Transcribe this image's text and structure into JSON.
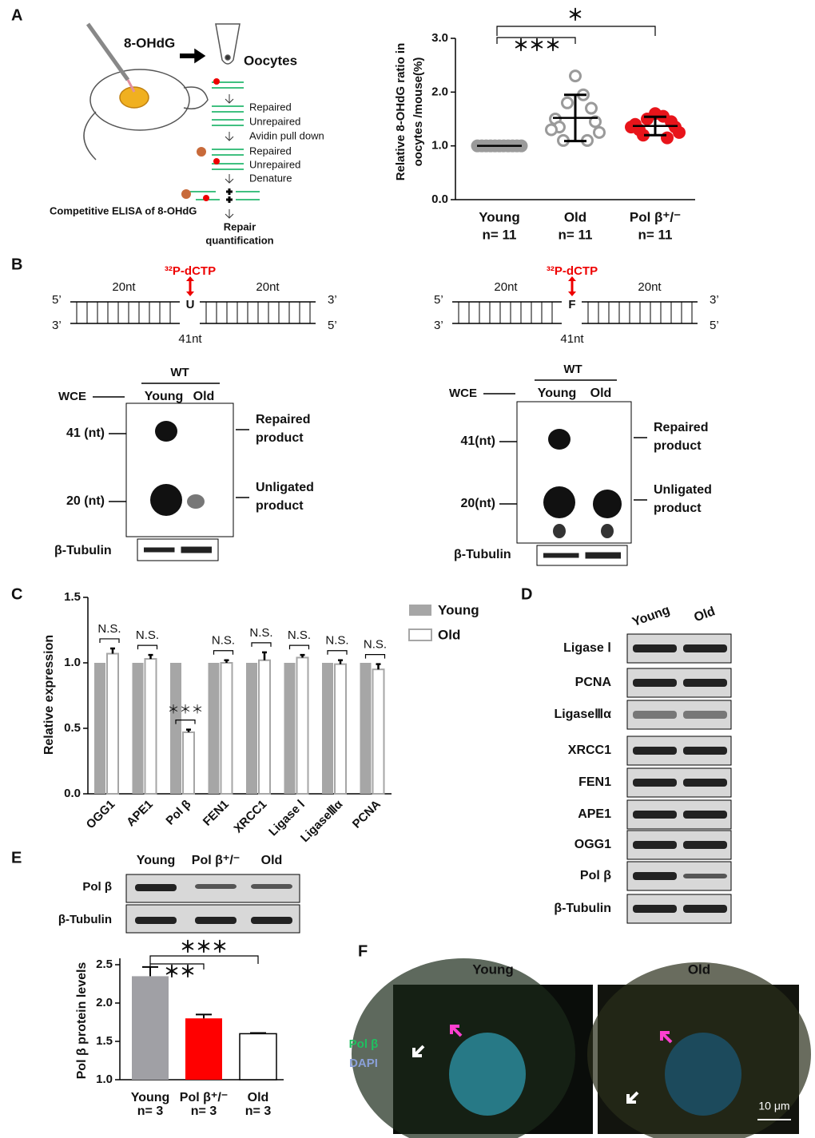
{
  "panel_labels": [
    "A",
    "B",
    "C",
    "D",
    "E",
    "F"
  ],
  "panel_a": {
    "steps": [
      "8-OHdG",
      "Oocytes",
      "Repaired",
      "Unrepaired",
      "Avidin pull down",
      "Repaired",
      "Unrepaired",
      "Denature",
      "Competitive ELISA of 8-OHdG",
      "Repair",
      "quantification"
    ]
  },
  "panel_b": [
    {
      "probe": "³²P-dCTP",
      "left_len": "20nt",
      "right_len": "20nt",
      "total": "41nt",
      "base": "U",
      "ends": [
        "5’",
        "3’",
        "3’",
        "5’"
      ],
      "group": "WT",
      "extract": "WCE",
      "lanes": [
        "Young",
        "Old"
      ],
      "markers": [
        "41 (nt)",
        "20 (nt)"
      ],
      "products": [
        [
          "Repaired",
          "product"
        ],
        [
          "Unligated",
          "product"
        ]
      ],
      "loading": "β-Tubulin"
    },
    {
      "probe": "³²P-dCTP",
      "left_len": "20nt",
      "right_len": "20nt",
      "total": "41nt",
      "base": "F",
      "ends": [
        "5’",
        "3’",
        "3’",
        "5’"
      ],
      "group": "WT",
      "extract": "WCE",
      "lanes": [
        "Young",
        "Old"
      ],
      "markers": [
        "41(nt)",
        "20(nt)"
      ],
      "products": [
        [
          "Repaired",
          "product"
        ],
        [
          "Unligated",
          "product"
        ]
      ],
      "loading": "β-Tubulin"
    }
  ],
  "panel_d": {
    "lanes": [
      "Young",
      "Old"
    ],
    "proteins": [
      "Ligase Ⅰ",
      "PCNA",
      "LigaseⅢα",
      "XRCC1",
      "FEN1",
      "APE1",
      "OGG1",
      "Pol β",
      "β-Tubulin"
    ]
  },
  "panel_e": {
    "lanes": [
      "Young",
      "Pol β⁺/⁻",
      "Old"
    ],
    "proteins": [
      "Pol β",
      "β-Tubulin"
    ]
  },
  "panel_f": {
    "conditions": [
      "Young",
      "Old"
    ],
    "stains": [
      "Pol β",
      "DAPI"
    ],
    "scale_bar": "10 μm"
  },
  "chart_data": [
    {
      "type": "scatter",
      "ylabel": [
        "Relative 8-OHdG ratio in",
        "oocytes /mouse(%)"
      ],
      "categories": [
        "Young",
        "Old",
        "Pol β⁺/⁻"
      ],
      "n_labels": [
        "n= 11",
        "n= 11",
        "n= 11"
      ],
      "groups": [
        {
          "color": "#9a9a9a",
          "filled": true,
          "values": [
            1.0,
            1.0,
            1.0,
            1.0,
            1.0,
            1.0,
            1.0,
            1.0,
            1.0,
            1.0,
            1.0
          ],
          "mean": 1.0,
          "sd": 0.0
        },
        {
          "color": "#9a9a9a",
          "filled": false,
          "values": [
            2.3,
            1.95,
            1.8,
            1.7,
            1.5,
            1.45,
            1.35,
            1.25,
            1.1,
            1.1,
            1.3
          ],
          "mean": 1.52,
          "sd": 0.43
        },
        {
          "color": "#e8141a",
          "filled": true,
          "values": [
            1.6,
            1.55,
            1.5,
            1.45,
            1.4,
            1.35,
            1.3,
            1.25,
            1.2,
            1.15,
            1.35
          ],
          "mean": 1.37,
          "sd": 0.17
        }
      ],
      "significance_labels": [
        "＊＊＊",
        "＊"
      ],
      "ylim": [
        0,
        3.0
      ],
      "yticks": [
        {
          "value": 0,
          "label": "0.0"
        },
        {
          "value": 1,
          "label": "1.0"
        },
        {
          "value": 2,
          "label": "2.0"
        },
        {
          "value": 3,
          "label": "3.0"
        }
      ]
    },
    {
      "type": "grouped_bar",
      "ylabel": "Relative expression",
      "categories": [
        "OGG1",
        "APE1",
        "Pol β",
        "FEN1",
        "XRCC1",
        "Ligase Ⅰ",
        "LigaseⅢα",
        "PCNA"
      ],
      "series": [
        {
          "name": "Young",
          "color": "#a6a6a6",
          "values": [
            1.0,
            1.0,
            1.0,
            1.0,
            1.0,
            1.0,
            1.0,
            1.0
          ]
        },
        {
          "name": "Old",
          "color": "#ffffff",
          "values": [
            1.07,
            1.03,
            0.47,
            1.0,
            1.02,
            1.04,
            0.99,
            0.95
          ],
          "errors": [
            0.04,
            0.03,
            0.02,
            0.02,
            0.06,
            0.02,
            0.03,
            0.04
          ]
        }
      ],
      "significance_labels": [
        "N.S.",
        "N.S.",
        "＊＊＊",
        "N.S.",
        "N.S.",
        "N.S.",
        "N.S.",
        "N.S."
      ],
      "ylim": [
        0,
        1.5
      ],
      "yticks": [
        {
          "value": 0,
          "label": "0.0"
        },
        {
          "value": 0.5,
          "label": "0.5"
        },
        {
          "value": 1,
          "label": "1.0"
        },
        {
          "value": 1.5,
          "label": "1.5"
        }
      ]
    },
    {
      "type": "bar",
      "ylabel": "Pol β protein levels",
      "categories": [
        "Young",
        "Pol β⁺/⁻",
        "Old"
      ],
      "n_labels": [
        "n= 3",
        "n= 3",
        "n= 3"
      ],
      "values": [
        2.35,
        1.8,
        1.6
      ],
      "errors": [
        0.12,
        0.05,
        0.01
      ],
      "colors": [
        "#a0a0a5",
        "#ff0000",
        "#ffffff"
      ],
      "significance_labels": [
        "＊＊＊",
        "＊＊"
      ],
      "ylim": [
        1.0,
        2.5
      ],
      "yticks": [
        {
          "value": 1,
          "label": "1.0"
        },
        {
          "value": 1.5,
          "label": "1.5"
        },
        {
          "value": 2,
          "label": "2.0"
        },
        {
          "value": 2.5,
          "label": "2.5"
        }
      ]
    }
  ]
}
